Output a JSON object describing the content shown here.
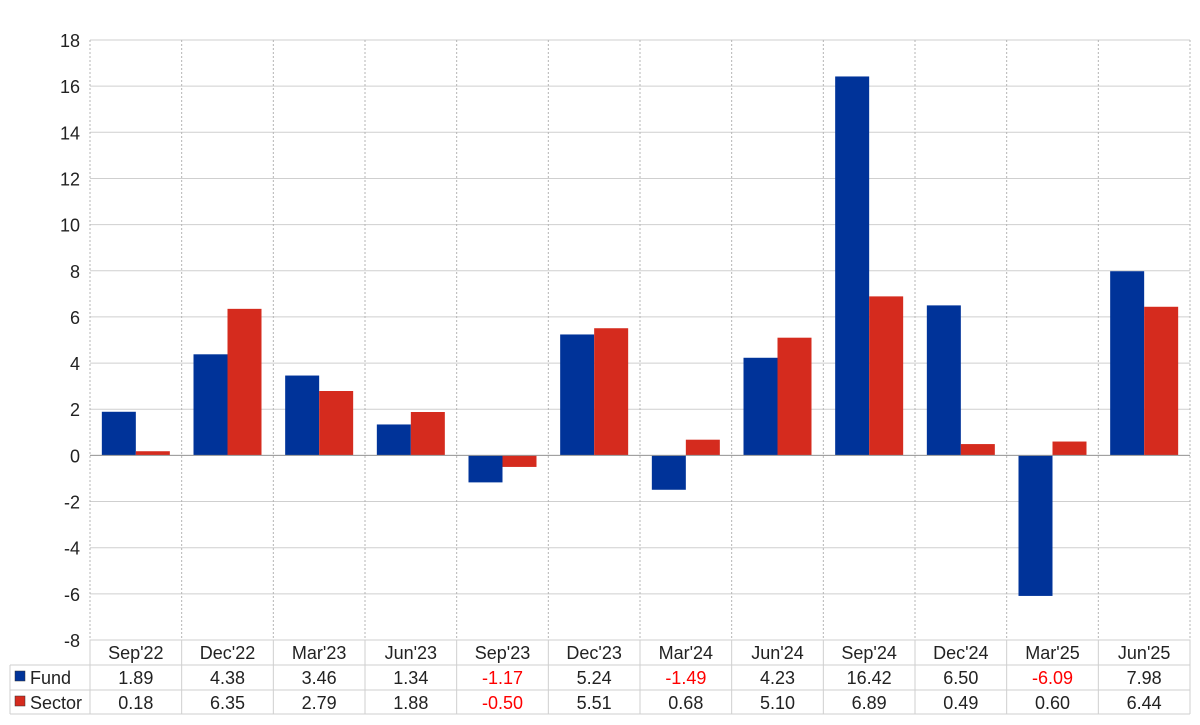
{
  "chart_data": {
    "type": "bar",
    "categories": [
      "Sep'22",
      "Dec'22",
      "Mar'23",
      "Jun'23",
      "Sep'23",
      "Dec'23",
      "Mar'24",
      "Jun'24",
      "Sep'24",
      "Dec'24",
      "Mar'25",
      "Jun'25"
    ],
    "series": [
      {
        "name": "Fund",
        "color": "#003399",
        "values": [
          1.89,
          4.38,
          3.46,
          1.34,
          -1.17,
          5.24,
          -1.49,
          4.23,
          16.42,
          6.5,
          -6.09,
          7.98
        ]
      },
      {
        "name": "Sector",
        "color": "#d52b1e",
        "values": [
          0.18,
          6.35,
          2.79,
          1.88,
          -0.5,
          5.51,
          0.68,
          5.1,
          6.89,
          0.49,
          0.6,
          6.44
        ]
      }
    ],
    "table": {
      "rows": [
        {
          "label": "Fund",
          "cells": [
            "1.89",
            "4.38",
            "3.46",
            "1.34",
            "-1.17",
            "5.24",
            "-1.49",
            "4.23",
            "16.42",
            "6.50",
            "-6.09",
            "7.98"
          ]
        },
        {
          "label": "Sector",
          "cells": [
            "0.18",
            "6.35",
            "2.79",
            "1.88",
            "-0.50",
            "5.51",
            "0.68",
            "5.10",
            "6.89",
            "0.49",
            "0.60",
            "6.44"
          ]
        }
      ],
      "negative_color": "#ff0000"
    },
    "title": "",
    "xlabel": "",
    "ylabel": "",
    "ylim": [
      -8,
      18
    ],
    "yticks": [
      18,
      16,
      14,
      12,
      10,
      8,
      6,
      4,
      2,
      0,
      -2,
      -4,
      -6,
      -8
    ],
    "grid": true,
    "legend": "table-left"
  }
}
